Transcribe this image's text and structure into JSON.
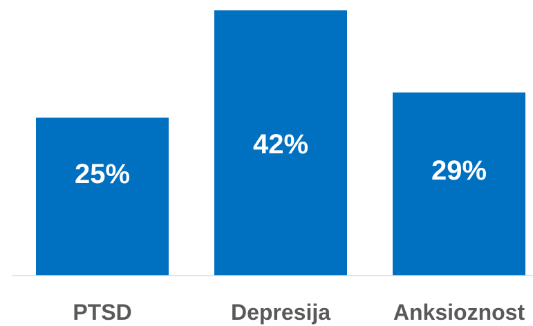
{
  "chart_data": {
    "type": "bar",
    "categories": [
      "PTSD",
      "Depresija",
      "Anksioznost"
    ],
    "values": [
      25,
      42,
      29
    ],
    "data_labels": [
      "25%",
      "42%",
      "29%"
    ],
    "title": "",
    "xlabel": "",
    "ylabel": "",
    "ylim": [
      0,
      42
    ],
    "grid": false,
    "legend": "none",
    "colors": {
      "bar": "#0070C0",
      "data_label": "#FFFFFF",
      "category_label": "#595959",
      "axis": "#D9D9D9"
    }
  }
}
